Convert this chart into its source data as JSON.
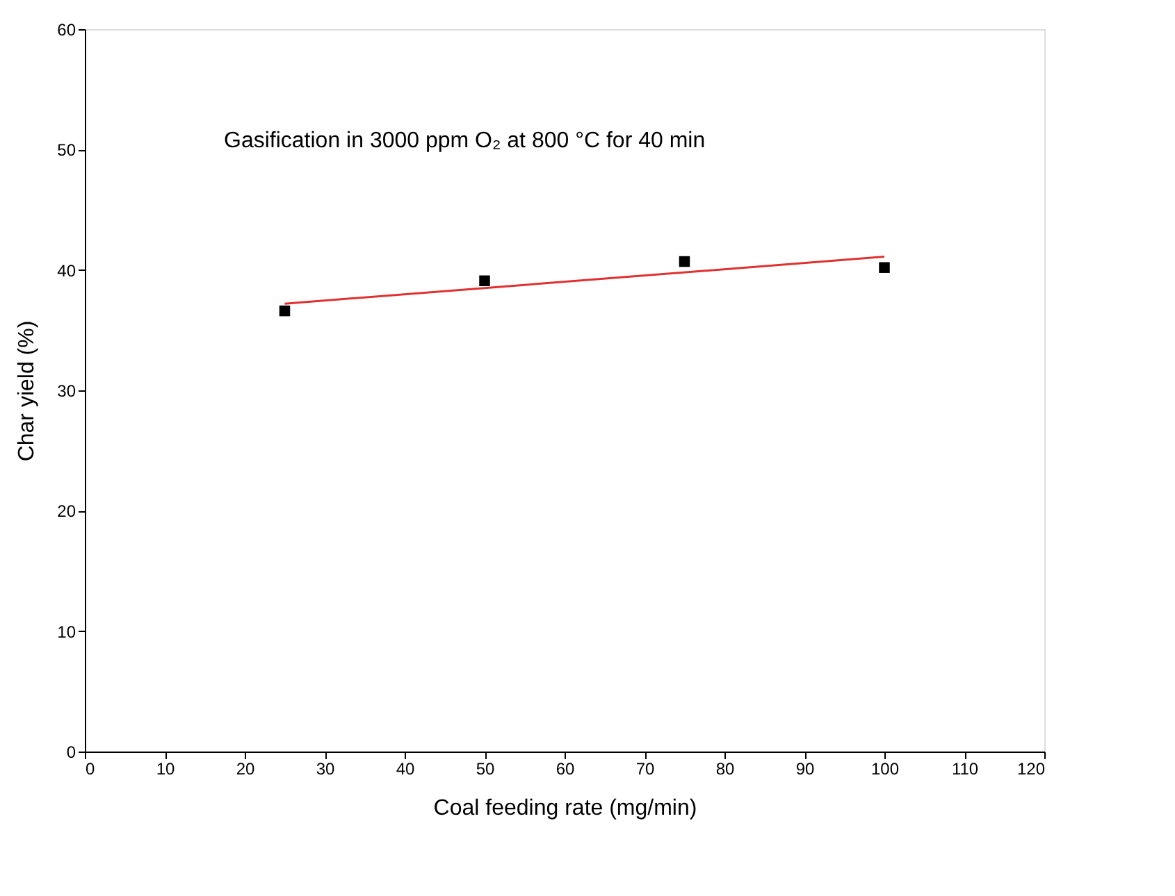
{
  "chart_data": {
    "type": "scatter",
    "xlabel": "Coal feeding rate (mg/min)",
    "ylabel": "Char yield (%)",
    "annotations": [
      "Gasification in 3000 ppm O₂ at 800 °C for 40 min"
    ],
    "xlim": [
      0,
      120
    ],
    "xticks": [
      0,
      10,
      20,
      30,
      40,
      50,
      60,
      70,
      80,
      90,
      100,
      110,
      120
    ],
    "ylim": [
      0,
      60
    ],
    "yticks": [
      0,
      10,
      20,
      30,
      40,
      50,
      60
    ],
    "grid": false,
    "series": [
      {
        "color": "#000000",
        "marker": "square",
        "x": [
          25,
          50,
          75,
          100
        ],
        "values": [
          36.6,
          39.1,
          40.7,
          40.2
        ]
      },
      {
        "type": "line",
        "color": "#e03030",
        "marker": "none",
        "line_style": "solid",
        "x": [
          25,
          100
        ],
        "values": [
          37.2,
          41.1
        ]
      }
    ]
  }
}
